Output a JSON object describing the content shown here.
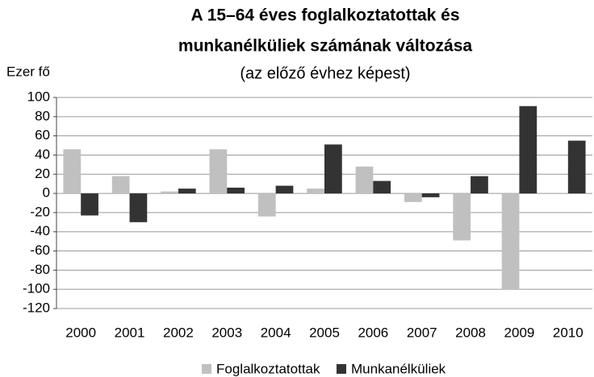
{
  "chart_data": {
    "type": "bar",
    "title": [
      "A 15–64 éves foglalkoztatottak és",
      "munkanélküliek számának változása"
    ],
    "subtitle": "(az előző évhez képest)",
    "y_label": "Ezer fő",
    "categories": [
      "2000",
      "2001",
      "2002",
      "2003",
      "2004",
      "2005",
      "2006",
      "2007",
      "2008",
      "2009",
      "2010"
    ],
    "series": [
      {
        "name": "Foglalkoztatottak",
        "color": "#c0c0c0",
        "values": [
          46,
          18,
          2,
          46,
          -24,
          5,
          28,
          -9,
          -49,
          -100,
          0
        ]
      },
      {
        "name": "Munkanélküliek",
        "color": "#333333",
        "values": [
          -23,
          -30,
          5,
          6,
          8,
          51,
          13,
          -4,
          18,
          91,
          55
        ]
      }
    ],
    "ylim": [
      -120,
      100
    ],
    "yticks": [
      -120,
      -100,
      -80,
      -60,
      -40,
      -20,
      0,
      20,
      40,
      60,
      80,
      100
    ],
    "grid": true,
    "legend": "bottom"
  }
}
